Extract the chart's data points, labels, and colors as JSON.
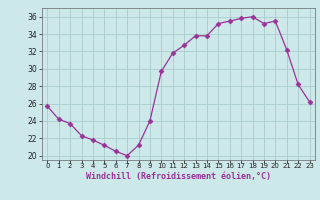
{
  "x": [
    0,
    1,
    2,
    3,
    4,
    5,
    6,
    7,
    8,
    9,
    10,
    11,
    12,
    13,
    14,
    15,
    16,
    17,
    18,
    19,
    20,
    21,
    22,
    23
  ],
  "y": [
    25.7,
    24.2,
    23.7,
    22.3,
    21.8,
    21.2,
    20.5,
    20.0,
    21.2,
    24.0,
    29.7,
    31.8,
    32.7,
    33.8,
    33.8,
    35.2,
    35.5,
    35.8,
    36.0,
    35.2,
    35.5,
    32.2,
    28.2,
    26.2
  ],
  "line_color": "#993399",
  "marker_color": "#993399",
  "bg_color": "#cce8e8",
  "grid_color": "#aacccc",
  "xlabel": "Windchill (Refroidissement éolien,°C)",
  "xlabel_color": "#993399",
  "ylabel_ticks": [
    20,
    22,
    24,
    26,
    28,
    30,
    32,
    34,
    36
  ],
  "xtick_labels": [
    "0",
    "1",
    "2",
    "3",
    "4",
    "5",
    "6",
    "7",
    "8",
    "9",
    "10",
    "11",
    "12",
    "13",
    "14",
    "15",
    "16",
    "17",
    "18",
    "19",
    "20",
    "21",
    "22",
    "23"
  ],
  "ylim": [
    19.5,
    37.0
  ],
  "xlim": [
    -0.5,
    23.5
  ]
}
